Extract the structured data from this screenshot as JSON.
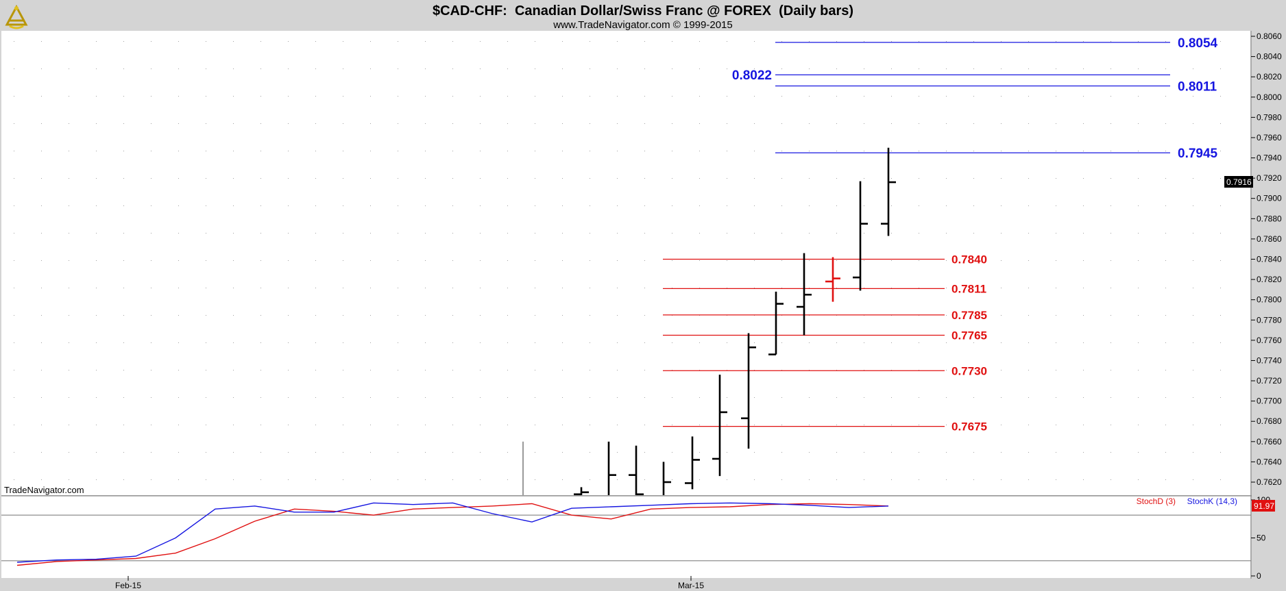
{
  "header": {
    "title": "$CAD-CHF:  Canadian Dollar/Swiss Franc @ FOREX  (Daily bars)",
    "subtitle": "www.TradeNavigator.com © 1999-2015"
  },
  "icons": {
    "logo": "sextant-icon"
  },
  "watermark": "TradeNavigator.com",
  "colors": {
    "background": "#ffffff",
    "frame": "#d4d4d4",
    "blue": "#1515e0",
    "red": "#e01010",
    "bars": "#000000"
  },
  "chart_data": [
    {
      "type": "ohlc",
      "title": "$CAD-CHF:  Canadian Dollar/Swiss Franc @ FOREX  (Daily bars)",
      "ylim": [
        0.7604,
        0.8064
      ],
      "y_ticks": [
        "0.8060",
        "0.8040",
        "0.8020",
        "0.8000",
        "0.7980",
        "0.7960",
        "0.7940",
        "0.7920",
        "0.7900",
        "0.7880",
        "0.7860",
        "0.7840",
        "0.7820",
        "0.7800",
        "0.7780",
        "0.7760",
        "0.7740",
        "0.7720",
        "0.7700",
        "0.7680",
        "0.7660",
        "0.7640",
        "0.7620"
      ],
      "x_labels": [
        "Feb-15",
        "Mar-15"
      ],
      "last_price": "0.7916",
      "bars": [
        {
          "open": 0.761,
          "high": 0.766,
          "low": 0.7604,
          "close": 0.762
        },
        {
          "open": 0.7608,
          "high": 0.7615,
          "low": 0.7604,
          "close": 0.761
        },
        {
          "open": 0.7605,
          "high": 0.766,
          "low": 0.7604,
          "close": 0.7627
        },
        {
          "open": 0.7627,
          "high": 0.7656,
          "low": 0.7604,
          "close": 0.7608
        },
        {
          "open": 0.7606,
          "high": 0.764,
          "low": 0.7604,
          "close": 0.762
        },
        {
          "open": 0.7619,
          "high": 0.7665,
          "low": 0.7613,
          "close": 0.7642
        },
        {
          "open": 0.7643,
          "high": 0.7726,
          "low": 0.7626,
          "close": 0.7689
        },
        {
          "open": 0.7683,
          "high": 0.7767,
          "low": 0.7653,
          "close": 0.7753
        },
        {
          "open": 0.7746,
          "high": 0.7808,
          "low": 0.7746,
          "close": 0.7796
        },
        {
          "open": 0.7793,
          "high": 0.7846,
          "low": 0.7765,
          "close": 0.7805
        },
        {
          "open": 0.7818,
          "high": 0.7842,
          "low": 0.7798,
          "close": 0.7821
        },
        {
          "open": 0.7822,
          "high": 0.7917,
          "low": 0.7809,
          "close": 0.7875
        },
        {
          "open": 0.7875,
          "high": 0.795,
          "low": 0.7863,
          "close": 0.7916
        }
      ],
      "levels_blue": [
        {
          "value": 0.8054,
          "label": "0.8054"
        },
        {
          "value": 0.8022,
          "label": "0.8022"
        },
        {
          "value": 0.8011,
          "label": "0.8011"
        },
        {
          "value": 0.7945,
          "label": "0.7945"
        }
      ],
      "levels_red": [
        {
          "value": 0.784,
          "label": "0.7840"
        },
        {
          "value": 0.7811,
          "label": "0.7811"
        },
        {
          "value": 0.7785,
          "label": "0.7785"
        },
        {
          "value": 0.7765,
          "label": "0.7765"
        },
        {
          "value": 0.773,
          "label": "0.7730"
        },
        {
          "value": 0.7675,
          "label": "0.7675"
        }
      ]
    },
    {
      "type": "line",
      "ylim": [
        0,
        100
      ],
      "y_ticks": [
        "100",
        "50",
        "0"
      ],
      "reference_lines": [
        80,
        20
      ],
      "last_value": "91.97",
      "series": [
        {
          "name": "StochD (3)",
          "color": "#e01010",
          "values": [
            14,
            19,
            21,
            23,
            30,
            49,
            72,
            88,
            85,
            80,
            88,
            90,
            92,
            95,
            80,
            75,
            88,
            90,
            91,
            94,
            95,
            94,
            92
          ]
        },
        {
          "name": "StochK (14,3)",
          "color": "#1515e0",
          "values": [
            18,
            21,
            22,
            26,
            50,
            88,
            92,
            84,
            84,
            96,
            94,
            96,
            82,
            71,
            89,
            91,
            93,
            95,
            96,
            95,
            93,
            90,
            92
          ]
        }
      ]
    }
  ]
}
